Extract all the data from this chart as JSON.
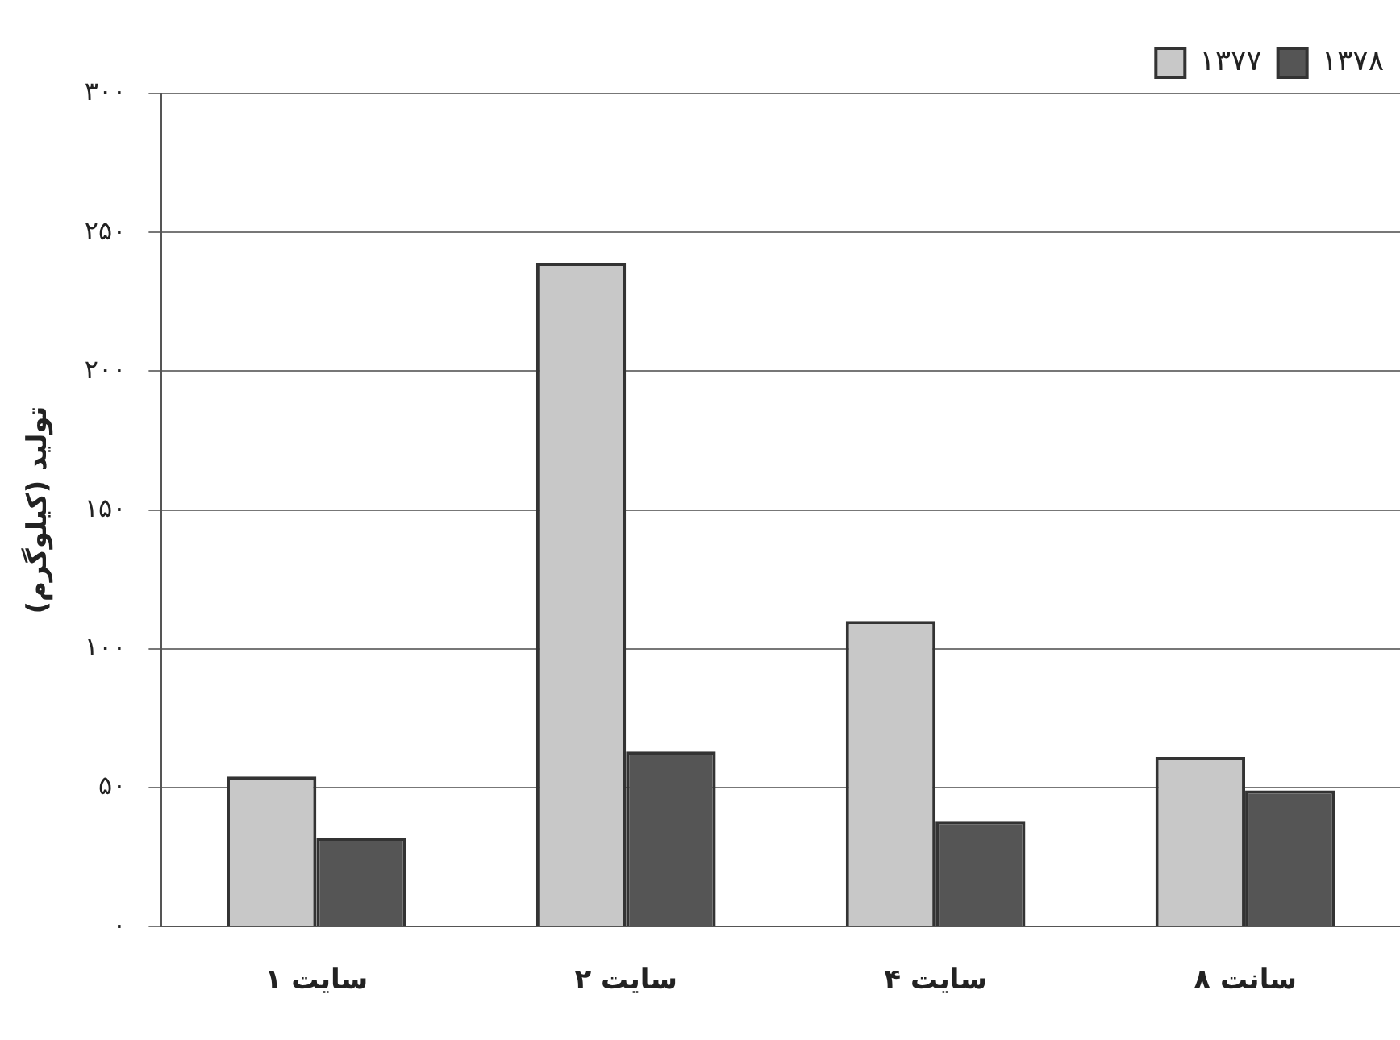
{
  "chart_data": {
    "type": "bar",
    "ylabel": "تولید (کیلوگرم)",
    "categories": [
      "سایت ۱",
      "سایت ۲",
      "سایت ۴",
      "سانت ۸"
    ],
    "series": [
      {
        "name": "۱۳۷۷",
        "color": "#c8c8c8",
        "values": [
          54,
          239,
          110,
          61
        ]
      },
      {
        "name": "۱۳۷۸",
        "color": "#555555",
        "values": [
          32,
          63,
          38,
          49
        ]
      }
    ],
    "ylim": [
      0,
      300
    ],
    "yticks": [
      {
        "value": 0,
        "label": "۰"
      },
      {
        "value": 50,
        "label": "۵۰"
      },
      {
        "value": 100,
        "label": "۱۰۰"
      },
      {
        "value": 150,
        "label": "۱۵۰"
      },
      {
        "value": 200,
        "label": "۲۰۰"
      },
      {
        "value": 250,
        "label": "۲۵۰"
      },
      {
        "value": 300,
        "label": "۳۰۰"
      }
    ],
    "grid": "y",
    "legend": "top right"
  }
}
